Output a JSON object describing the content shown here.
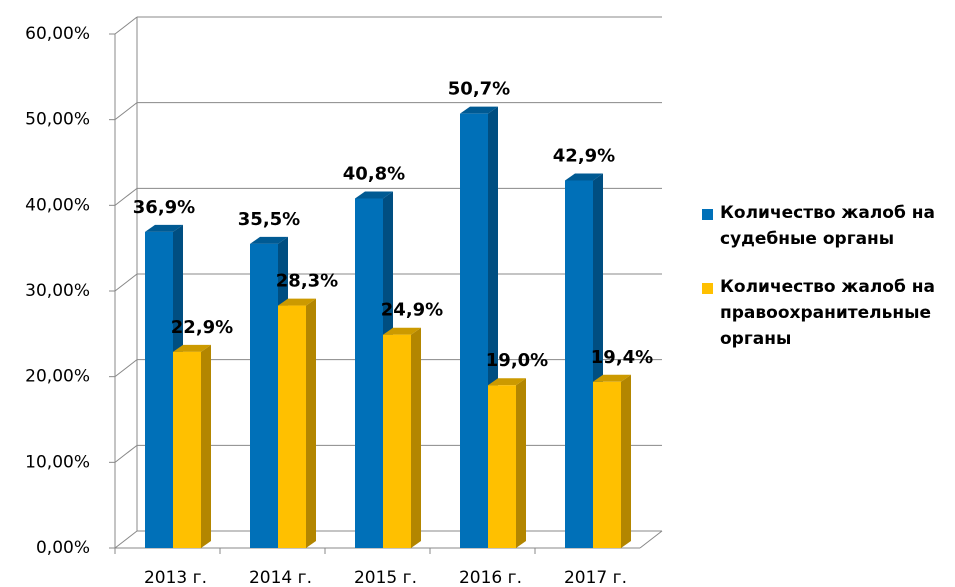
{
  "chart_data": {
    "type": "bar3d",
    "categories": [
      "2013 г.",
      "2014 г.",
      "2015 г.",
      "2016 г.",
      "2017 г."
    ],
    "series": [
      {
        "name": "Количество жалоб на судебные органы",
        "color": "#0070b8",
        "values": [
          36.9,
          35.5,
          40.8,
          50.7,
          42.9
        ],
        "value_labels": [
          "36,9%",
          "35,5%",
          "40,8%",
          "50,7%",
          "42,9%"
        ]
      },
      {
        "name": "Количество жалоб на правоохранительные органы",
        "color": "#ffc000",
        "values": [
          22.9,
          28.3,
          24.9,
          19.0,
          19.4
        ],
        "value_labels": [
          "22,9%",
          "28,3%",
          "24,9%",
          "19,0%",
          "19,4%"
        ]
      }
    ],
    "ylim": [
      0,
      60
    ],
    "yticks": [
      {
        "value": 0,
        "label": "0,00%"
      },
      {
        "value": 10,
        "label": "10,00%"
      },
      {
        "value": 20,
        "label": "20,00%"
      },
      {
        "value": 30,
        "label": "30,00%"
      },
      {
        "value": 40,
        "label": "40,00%"
      },
      {
        "value": 50,
        "label": "50,00%"
      },
      {
        "value": 60,
        "label": "60,00%"
      }
    ],
    "grid": true,
    "legend": "right"
  }
}
